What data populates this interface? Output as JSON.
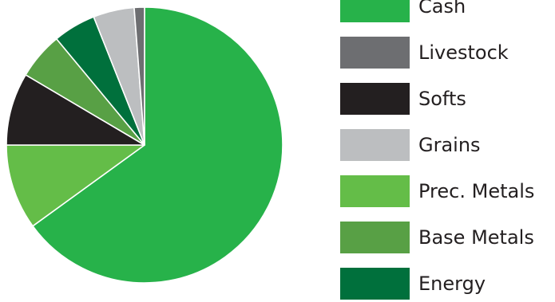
{
  "chart_data": {
    "type": "pie",
    "title": "",
    "start_angle_deg": 0,
    "direction": "clockwise",
    "slices": [
      {
        "label": "Cash",
        "value": 65.0,
        "color": "#27b24a"
      },
      {
        "label": "Prec. Metals",
        "value": 10.0,
        "color": "#64bd48"
      },
      {
        "label": "Softs",
        "value": 8.5,
        "color": "#231f20"
      },
      {
        "label": "Base Metals",
        "value": 5.5,
        "color": "#58a045"
      },
      {
        "label": "Energy",
        "value": 5.0,
        "color": "#00703c"
      },
      {
        "label": "Grains",
        "value": 4.8,
        "color": "#bcbec0"
      },
      {
        "label": "Livestock",
        "value": 1.2,
        "color": "#6d6e71"
      }
    ],
    "legend": {
      "placement": "right",
      "entries": [
        {
          "label": "Cash",
          "color": "#27b24a"
        },
        {
          "label": "Livestock",
          "color": "#6d6e71"
        },
        {
          "label": "Softs",
          "color": "#231f20"
        },
        {
          "label": "Grains",
          "color": "#bcbec0"
        },
        {
          "label": "Prec. Metals",
          "color": "#64bd48"
        },
        {
          "label": "Base Metals",
          "color": "#58a045"
        },
        {
          "label": "Energy",
          "color": "#00703c"
        }
      ]
    }
  }
}
